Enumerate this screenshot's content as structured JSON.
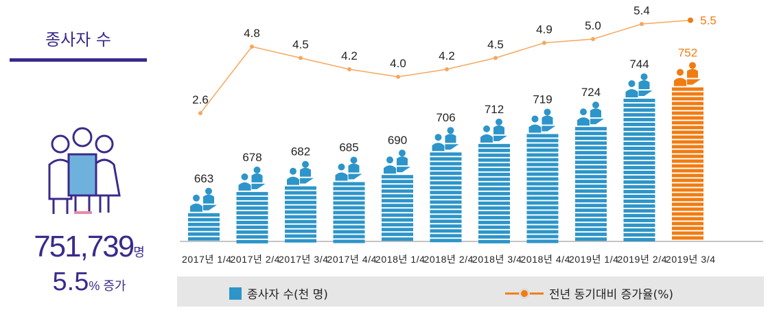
{
  "summary": {
    "title": "종사자 수",
    "value": "751,739",
    "value_unit": "명",
    "rate": "5.5",
    "rate_unit": "% 증가"
  },
  "colors": {
    "bar": "#2d95c9",
    "highlight": "#f07c12",
    "line": "#f5a75b",
    "text_accent": "#3b2a8a"
  },
  "icons": {
    "people": "people-group-icon",
    "bar_top": "workers-at-desk-icon"
  },
  "chart_data": {
    "type": "bar+line",
    "categories": [
      "2017년 1/4",
      "2017년 2/4",
      "2017년 3/4",
      "2017년 4/4",
      "2018년 1/4",
      "2018년 2/4",
      "2018년 3/4",
      "2018년 4/4",
      "2019년 1/4",
      "2019년 2/4",
      "2019년 3/4"
    ],
    "series": [
      {
        "name": "종사자 수(천 명)",
        "type": "bar",
        "values": [
          663,
          678,
          682,
          685,
          690,
          706,
          712,
          719,
          724,
          744,
          752
        ]
      },
      {
        "name": "전년 동기대비 증가율(%)",
        "type": "line",
        "values": [
          2.6,
          4.8,
          4.5,
          4.2,
          4.0,
          4.2,
          4.5,
          4.9,
          5.0,
          5.4,
          5.5
        ]
      }
    ],
    "highlight_index": 10,
    "legend_position": "bottom",
    "grid": false
  }
}
